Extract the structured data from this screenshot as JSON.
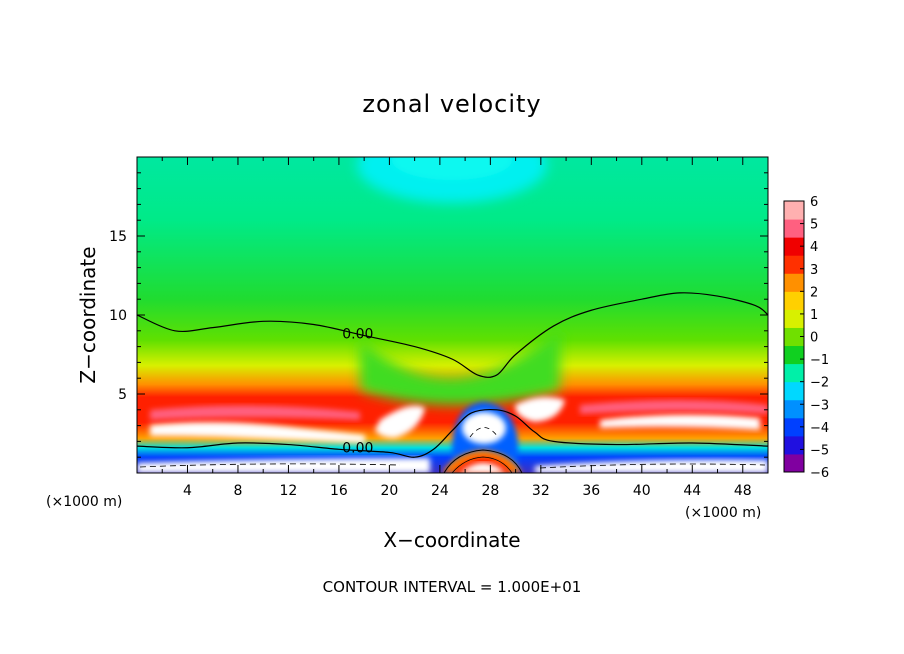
{
  "chart_data": {
    "type": "heatmap",
    "title": "zonal velocity",
    "xlabel": "X−coordinate",
    "ylabel": "Z−coordinate",
    "x_unit_left": "(×1000 m)",
    "x_unit_right": "(×1000 m)",
    "xlim": [
      0,
      50
    ],
    "ylim": [
      0,
      20
    ],
    "x_ticks": [
      4,
      8,
      12,
      16,
      20,
      24,
      28,
      32,
      36,
      40,
      44,
      48
    ],
    "x_tick_labels": [
      "4",
      "8",
      "12",
      "16",
      "20",
      "24",
      "28",
      "32",
      "36",
      "40",
      "44",
      "48"
    ],
    "y_ticks": [
      5,
      10,
      15
    ],
    "y_tick_labels": [
      "5",
      "10",
      "15"
    ],
    "colorbar": {
      "min": -6,
      "max": 6,
      "labels": [
        {
          "value": 6,
          "text": "6"
        },
        {
          "value": 5,
          "text": "5"
        },
        {
          "value": 4,
          "text": "4"
        },
        {
          "value": 3,
          "text": "3"
        },
        {
          "value": 2,
          "text": "2"
        },
        {
          "value": 1,
          "text": "1"
        },
        {
          "value": 0,
          "text": "0"
        },
        {
          "value": -1,
          "text": "−1"
        },
        {
          "value": -2,
          "text": "−2"
        },
        {
          "value": -3,
          "text": "−3"
        },
        {
          "value": -4,
          "text": "−4"
        },
        {
          "value": -5,
          "text": "−5"
        },
        {
          "value": -6,
          "text": "−6"
        }
      ],
      "colors": [
        "#8000a0",
        "#2010e0",
        "#0040ff",
        "#0090ff",
        "#00d8ff",
        "#00f0a8",
        "#10d020",
        "#70e000",
        "#d8f000",
        "#ffd000",
        "#ff9000",
        "#ff3000",
        "#f00000",
        "#ff6080",
        "#ffb0b0"
      ]
    },
    "contour_labels": [
      {
        "x": 17.5,
        "z": 8.5,
        "text": "0.00"
      },
      {
        "x": 17.5,
        "z": 1.3,
        "text": "0.00"
      }
    ],
    "zero_contour_upper": [
      [
        0,
        10.0
      ],
      [
        3,
        9.0
      ],
      [
        6,
        9.2
      ],
      [
        10,
        9.6
      ],
      [
        14,
        9.4
      ],
      [
        18,
        8.7
      ],
      [
        22,
        8.0
      ],
      [
        25,
        7.2
      ],
      [
        27,
        6.2
      ],
      [
        28.5,
        6.2
      ],
      [
        30,
        7.5
      ],
      [
        33,
        9.3
      ],
      [
        36,
        10.3
      ],
      [
        40,
        11.0
      ],
      [
        43,
        11.4
      ],
      [
        46,
        11.2
      ],
      [
        49,
        10.6
      ],
      [
        50,
        10.0
      ]
    ],
    "zero_contour_lower": [
      [
        0,
        1.7
      ],
      [
        4,
        1.6
      ],
      [
        8,
        1.9
      ],
      [
        12,
        1.8
      ],
      [
        16,
        1.5
      ],
      [
        20,
        1.3
      ],
      [
        22,
        1.0
      ],
      [
        23.5,
        1.5
      ],
      [
        25,
        2.7
      ],
      [
        26.5,
        3.8
      ],
      [
        28.5,
        4.0
      ],
      [
        30,
        3.6
      ],
      [
        31.5,
        2.6
      ],
      [
        33,
        2.0
      ],
      [
        38,
        1.8
      ],
      [
        44,
        1.9
      ],
      [
        50,
        1.7
      ]
    ],
    "footer": "CONTOUR INTERVAL = 1.000E+01"
  }
}
